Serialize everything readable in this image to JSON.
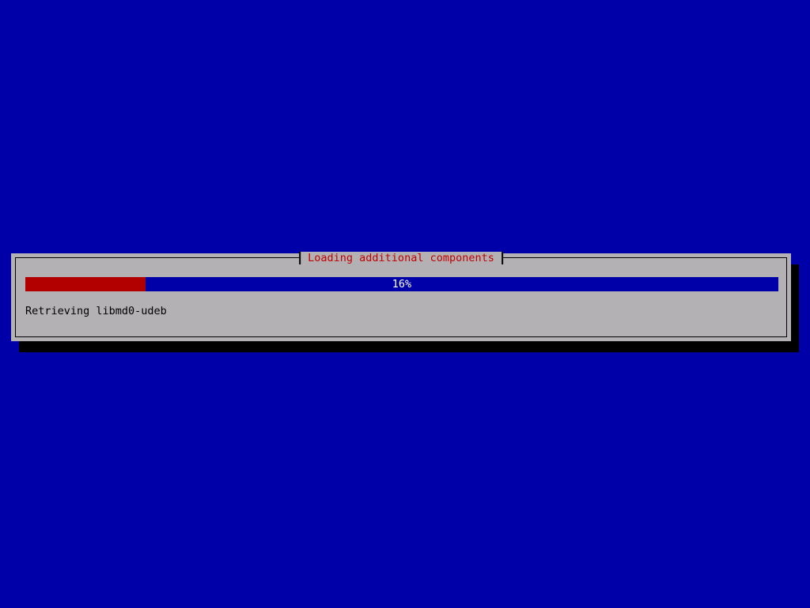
{
  "screen": {
    "background_color": "#0000a8"
  },
  "dialog": {
    "title": "Loading additional components",
    "title_color": "#c00000",
    "background_color": "#b3b1b3",
    "border_color": "#000000",
    "shadow_color": "#000000",
    "status_text": "Retrieving libmd0-udeb"
  },
  "progress": {
    "percent": 16,
    "percent_label": "16%",
    "fill_color": "#b20000",
    "track_color": "#0000a8",
    "label_color": "#ffffff"
  }
}
